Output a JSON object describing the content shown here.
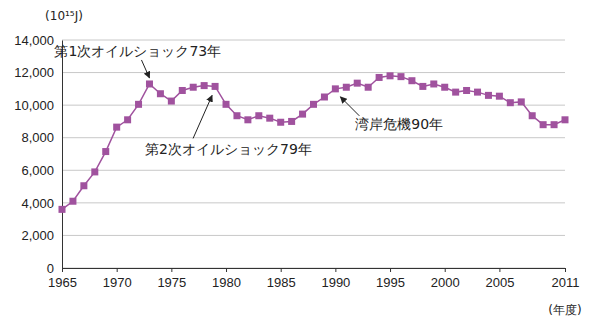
{
  "chart_data": {
    "type": "line",
    "y_label": "(10¹⁵J)",
    "x_label": "(年度)",
    "x": [
      1965,
      1966,
      1967,
      1968,
      1969,
      1970,
      1971,
      1972,
      1973,
      1974,
      1975,
      1976,
      1977,
      1978,
      1979,
      1980,
      1981,
      1982,
      1983,
      1984,
      1985,
      1986,
      1987,
      1988,
      1989,
      1990,
      1991,
      1992,
      1993,
      1994,
      1995,
      1996,
      1997,
      1998,
      1999,
      2000,
      2001,
      2002,
      2003,
      2004,
      2005,
      2006,
      2007,
      2008,
      2009,
      2010,
      2011
    ],
    "values": [
      3600,
      4100,
      5050,
      5900,
      7150,
      8650,
      9100,
      10050,
      11300,
      10700,
      10250,
      10900,
      11100,
      11200,
      11150,
      10050,
      9350,
      9100,
      9350,
      9200,
      8950,
      9000,
      9450,
      10050,
      10500,
      11000,
      11100,
      11350,
      11100,
      11700,
      11800,
      11750,
      11500,
      11150,
      11300,
      11100,
      10800,
      10900,
      10800,
      10600,
      10550,
      10150,
      10200,
      9350,
      8800,
      8800,
      9100
    ],
    "color": "#a0529e",
    "marker": "square",
    "line_style": "solid",
    "xlim": [
      1965,
      2011
    ],
    "xticks": [
      1965,
      1970,
      1975,
      1980,
      1985,
      1990,
      1995,
      2000,
      2005,
      2011
    ],
    "ylim": [
      0,
      14000
    ],
    "yticks": [
      0,
      {
        "value": 2000,
        "label": "2,000"
      },
      {
        "value": 4000,
        "label": "4,000"
      },
      {
        "value": 6000,
        "label": "6,000"
      },
      {
        "value": 8000,
        "label": "8,000"
      },
      {
        "value": 10000,
        "label": "10,000"
      },
      {
        "value": 12000,
        "label": "12,000"
      },
      {
        "value": 14000,
        "label": "14,000"
      }
    ],
    "grid": true,
    "annotations": [
      {
        "text": "第1次オイルショック73年",
        "x": 1973
      },
      {
        "text": "第2次オイルショック79年",
        "x": 1979
      },
      {
        "text": "湾岸危機90年",
        "x": 1990
      }
    ]
  }
}
